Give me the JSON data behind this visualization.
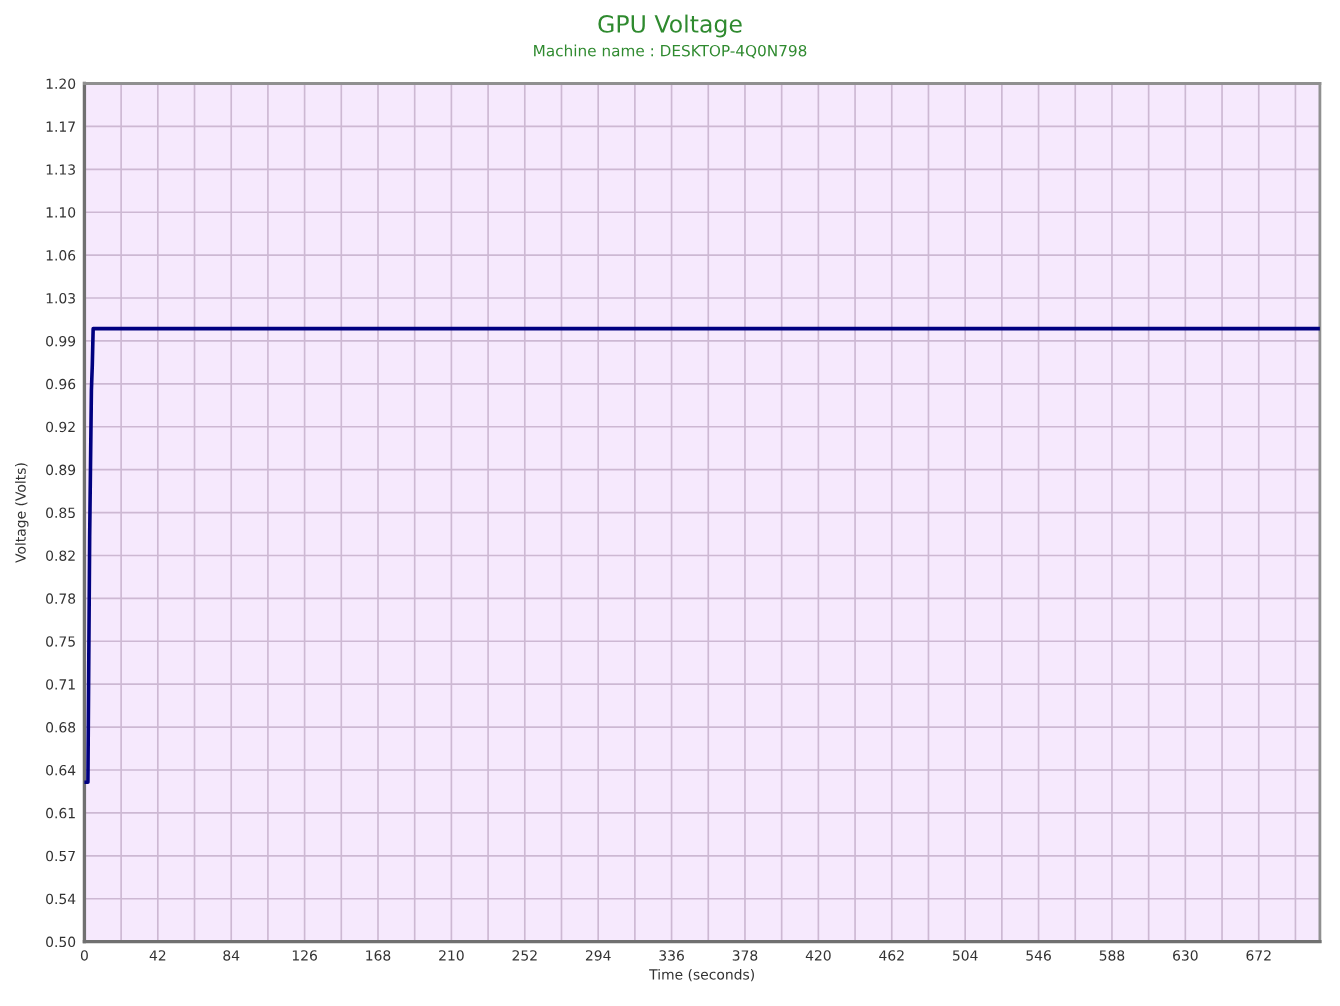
{
  "chart_data": {
    "type": "line",
    "title": "GPU Voltage",
    "subtitle": "Machine name : DESKTOP-4Q0N798",
    "xlabel": "Time (seconds)",
    "ylabel": "Voltage (Volts)",
    "series": [
      {
        "color": "#000080",
        "x": [
          0,
          2,
          3,
          4,
          4.5,
          5,
          707
        ],
        "values": [
          0.63,
          0.63,
          0.83,
          0.95,
          0.97,
          1.0,
          1.0
        ]
      }
    ],
    "xlim": [
      0,
      707
    ],
    "xticks": [
      0,
      {
        "value": 21,
        "label": null
      },
      42,
      {
        "value": 63,
        "label": null
      },
      84,
      {
        "value": 105,
        "label": null
      },
      126,
      {
        "value": 147,
        "label": null
      },
      168,
      {
        "value": 189,
        "label": null
      },
      210,
      {
        "value": 231,
        "label": null
      },
      252,
      {
        "value": 273,
        "label": null
      },
      294,
      {
        "value": 315,
        "label": null
      },
      336,
      {
        "value": 357,
        "label": null
      },
      378,
      {
        "value": 399,
        "label": null
      },
      420,
      {
        "value": 441,
        "label": null
      },
      462,
      {
        "value": 483,
        "label": null
      },
      504,
      {
        "value": 525,
        "label": null
      },
      546,
      {
        "value": 567,
        "label": null
      },
      588,
      {
        "value": 609,
        "label": null
      },
      630,
      {
        "value": 651,
        "label": null
      },
      672,
      {
        "value": 693,
        "label": null
      }
    ],
    "ylim": [
      0.5,
      1.2
    ],
    "yticks": [
      {
        "value": 0.5,
        "label": "0.50"
      },
      {
        "value": 0.535,
        "label": "0.54"
      },
      0.57,
      {
        "value": 0.605,
        "label": "0.61"
      },
      0.64,
      {
        "value": 0.675,
        "label": "0.68"
      },
      0.71,
      {
        "value": 0.745,
        "label": "0.75"
      },
      0.78,
      {
        "value": 0.815,
        "label": "0.82"
      },
      0.85,
      {
        "value": 0.885,
        "label": "0.89"
      },
      0.92,
      {
        "value": 0.955,
        "label": "0.96"
      },
      0.99,
      {
        "value": 1.025,
        "label": "1.03"
      },
      1.06,
      {
        "value": 1.095,
        "label": "1.10"
      },
      1.13,
      {
        "value": 1.165,
        "label": "1.17"
      },
      {
        "value": 1.2,
        "label": "1.20"
      }
    ],
    "grid": true,
    "marker": "none",
    "line_style": "solid"
  }
}
